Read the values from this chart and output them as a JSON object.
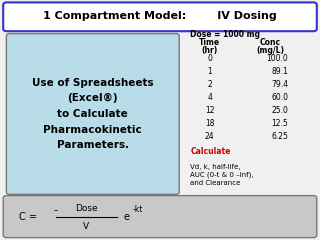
{
  "title": "1 Compartment Model:        IV Dosing",
  "bg_color": "#f0f0f0",
  "title_box_color": "#ffffff",
  "title_border_color": "#3333cc",
  "left_box_color": "#b8dce8",
  "left_box_border": "#777777",
  "left_text": "Use of Spreadsheets\n(Excel®)\nto Calculate\nPharmacokinetic\nParameters.",
  "dose_label": "Dose = 1000 mg",
  "table_headers": [
    "Time",
    "Conc"
  ],
  "table_subheaders": [
    "(hr)",
    "(mg/L)"
  ],
  "table_times": [
    "0",
    "1",
    "2",
    "4",
    "12",
    "18",
    "24"
  ],
  "table_concs": [
    "100.0",
    "89.1",
    "79.4",
    "60.0",
    "25.0",
    "12.5",
    "6.25"
  ],
  "calculate_text": "Calculate",
  "calculate_color": "#cc0000",
  "sub_calculate_text": "Vd, k, half-life,\nAUC (0-t & 0 –inf),\nand Clearance",
  "formula_box_color": "#c8c8c8",
  "formula_box_border": "#777777",
  "formula_numerator": "Dose",
  "formula_denominator": "V",
  "formula_exponent": "-kt"
}
